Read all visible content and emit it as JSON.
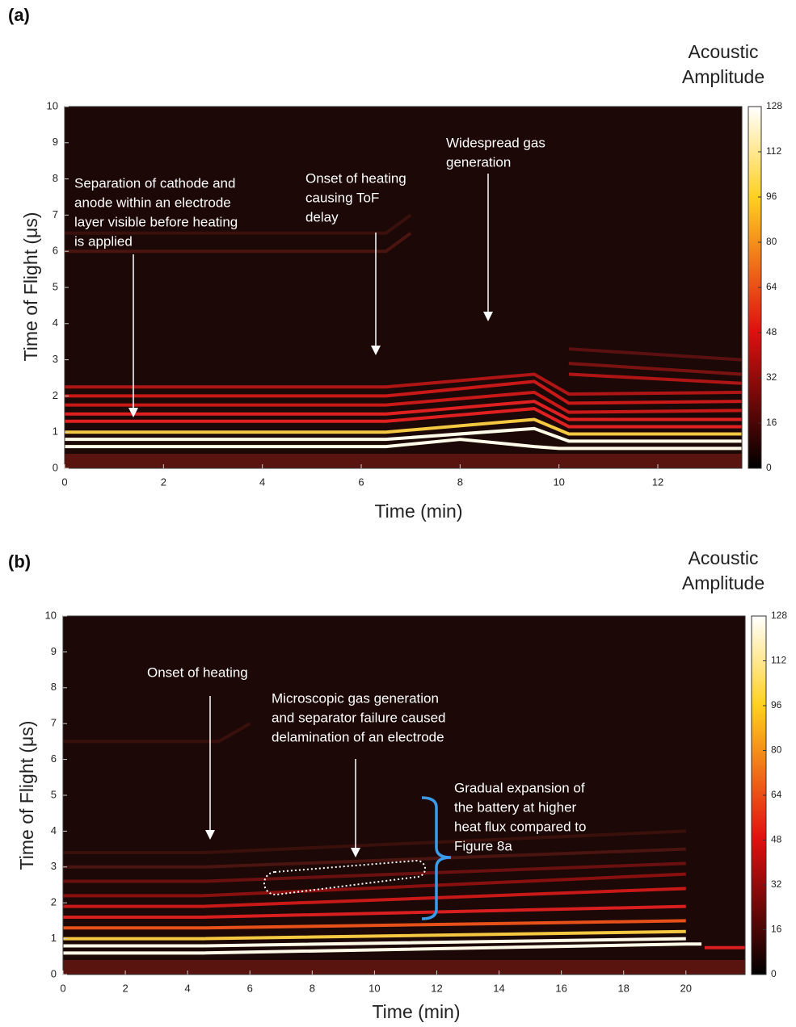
{
  "chart_data": [
    {
      "type": "heatmap",
      "panel_label": "(a)",
      "xlabel": "Time (min)",
      "ylabel": "Time of Flight (μs)",
      "colorbar_label": "Acoustic Amplitude",
      "xlim": [
        0,
        13.7
      ],
      "xticks": [
        0,
        2,
        4,
        6,
        8,
        10,
        12
      ],
      "ylim": [
        0,
        10
      ],
      "yticks": [
        0,
        1,
        2,
        3,
        4,
        5,
        6,
        7,
        8,
        9,
        10
      ],
      "clim": [
        0,
        128
      ],
      "cticks": [
        0,
        16,
        32,
        48,
        64,
        80,
        96,
        112,
        128
      ],
      "traces": [
        {
          "x": [
            0,
            6.5,
            8,
            9.5,
            10,
            13.7
          ],
          "y": [
            0.6,
            0.6,
            0.8,
            0.6,
            0.55,
            0.55
          ],
          "color": "#fffbe8"
        },
        {
          "x": [
            0,
            6.5,
            9.5,
            10.2,
            13.7
          ],
          "y": [
            0.8,
            0.8,
            1.1,
            0.75,
            0.75
          ],
          "color": "#fffbe8"
        },
        {
          "x": [
            0,
            6.5,
            9.5,
            10.2,
            13.7
          ],
          "y": [
            1.0,
            1.0,
            1.35,
            0.95,
            0.95
          ],
          "color": "#f5c842"
        },
        {
          "x": [
            0,
            6.5,
            9.5,
            10.2,
            13.7
          ],
          "y": [
            1.3,
            1.3,
            1.65,
            1.15,
            1.15
          ],
          "color": "#e02020"
        },
        {
          "x": [
            0,
            6.5,
            9.5,
            10.2,
            13.7
          ],
          "y": [
            1.5,
            1.5,
            1.85,
            1.35,
            1.35
          ],
          "color": "#e02020"
        },
        {
          "x": [
            0,
            6.5,
            9.5,
            10.2,
            13.7
          ],
          "y": [
            1.75,
            1.75,
            2.1,
            1.55,
            1.6
          ],
          "color": "#c81818"
        },
        {
          "x": [
            0,
            6.5,
            9.5,
            10.2,
            13.7
          ],
          "y": [
            2.0,
            2.0,
            2.4,
            1.8,
            1.85
          ],
          "color": "#c81818"
        },
        {
          "x": [
            0,
            6.5,
            9.5,
            10.2,
            13.7
          ],
          "y": [
            2.25,
            2.25,
            2.6,
            2.05,
            2.1
          ],
          "color": "#b01515"
        },
        {
          "x": [
            10.2,
            13.7
          ],
          "y": [
            2.6,
            2.35
          ],
          "color": "#b01515"
        },
        {
          "x": [
            10.2,
            13.7
          ],
          "y": [
            2.9,
            2.6
          ],
          "color": "#7a1212"
        },
        {
          "x": [
            10.2,
            13.7
          ],
          "y": [
            3.3,
            3.0
          ],
          "color": "#5a1010"
        },
        {
          "x": [
            0,
            6.5,
            7
          ],
          "y": [
            6.0,
            6.0,
            6.5
          ],
          "color": "#4a1410"
        },
        {
          "x": [
            0,
            6.5,
            7
          ],
          "y": [
            6.5,
            6.5,
            7.0
          ],
          "color": "#3a100c"
        }
      ],
      "annotations": [
        {
          "text": [
            "Separation of cathode and",
            "anode within an electrode",
            "layer visible before heating",
            "is applied"
          ]
        },
        {
          "text": [
            "Onset of heating",
            "causing ToF",
            "delay"
          ]
        },
        {
          "text": [
            "Widespread gas",
            "generation"
          ]
        }
      ]
    },
    {
      "type": "heatmap",
      "panel_label": "(b)",
      "xlabel": "Time (min)",
      "ylabel": "Time of Flight (μs)",
      "colorbar_label": "Acoustic Amplitude",
      "xlim": [
        0,
        21.9
      ],
      "xticks": [
        0,
        2,
        4,
        6,
        8,
        10,
        12,
        14,
        16,
        18,
        20
      ],
      "ylim": [
        0,
        10
      ],
      "yticks": [
        0,
        1,
        2,
        3,
        4,
        5,
        6,
        7,
        8,
        9,
        10
      ],
      "clim": [
        0,
        128
      ],
      "cticks": [
        0,
        16,
        32,
        48,
        64,
        80,
        96,
        112,
        128
      ],
      "traces": [
        {
          "x": [
            0,
            4.5,
            20,
            20.5
          ],
          "y": [
            0.6,
            0.6,
            0.85,
            0.85
          ],
          "color": "#fffbe8"
        },
        {
          "x": [
            0,
            4.5,
            20
          ],
          "y": [
            0.8,
            0.8,
            1.0
          ],
          "color": "#fffbe8"
        },
        {
          "x": [
            0,
            4.5,
            20
          ],
          "y": [
            1.0,
            1.0,
            1.2
          ],
          "color": "#f5c842"
        },
        {
          "x": [
            0,
            4.5,
            20
          ],
          "y": [
            1.3,
            1.3,
            1.5
          ],
          "color": "#e8501a"
        },
        {
          "x": [
            0,
            4.5,
            20
          ],
          "y": [
            1.6,
            1.6,
            1.9
          ],
          "color": "#d81e1e"
        },
        {
          "x": [
            0,
            4.5,
            20
          ],
          "y": [
            1.9,
            1.9,
            2.4
          ],
          "color": "#c81818"
        },
        {
          "x": [
            0,
            4.5,
            20
          ],
          "y": [
            2.2,
            2.2,
            2.8
          ],
          "color": "#8a1010"
        },
        {
          "x": [
            0,
            4.5,
            20
          ],
          "y": [
            2.6,
            2.6,
            3.1
          ],
          "color": "#6a1010"
        },
        {
          "x": [
            0,
            4.5,
            20
          ],
          "y": [
            3.0,
            3.0,
            3.5
          ],
          "color": "#4a1410"
        },
        {
          "x": [
            0,
            4.5,
            20
          ],
          "y": [
            3.4,
            3.4,
            4.0
          ],
          "color": "#3a100c"
        },
        {
          "x": [
            0,
            5,
            6
          ],
          "y": [
            6.5,
            6.5,
            7.0
          ],
          "color": "#3a100c"
        },
        {
          "x": [
            20.6,
            21.9
          ],
          "y": [
            0.75,
            0.75
          ],
          "color": "#d81e1e"
        }
      ],
      "annotations": [
        {
          "text": [
            "Onset of heating"
          ]
        },
        {
          "text": [
            "Microscopic gas generation",
            "and separator failure caused",
            "delamination of an electrode"
          ]
        },
        {
          "text": [
            "Gradual expansion of",
            "the battery at higher",
            "heat flux compared to",
            "Figure 8a"
          ]
        }
      ]
    }
  ]
}
